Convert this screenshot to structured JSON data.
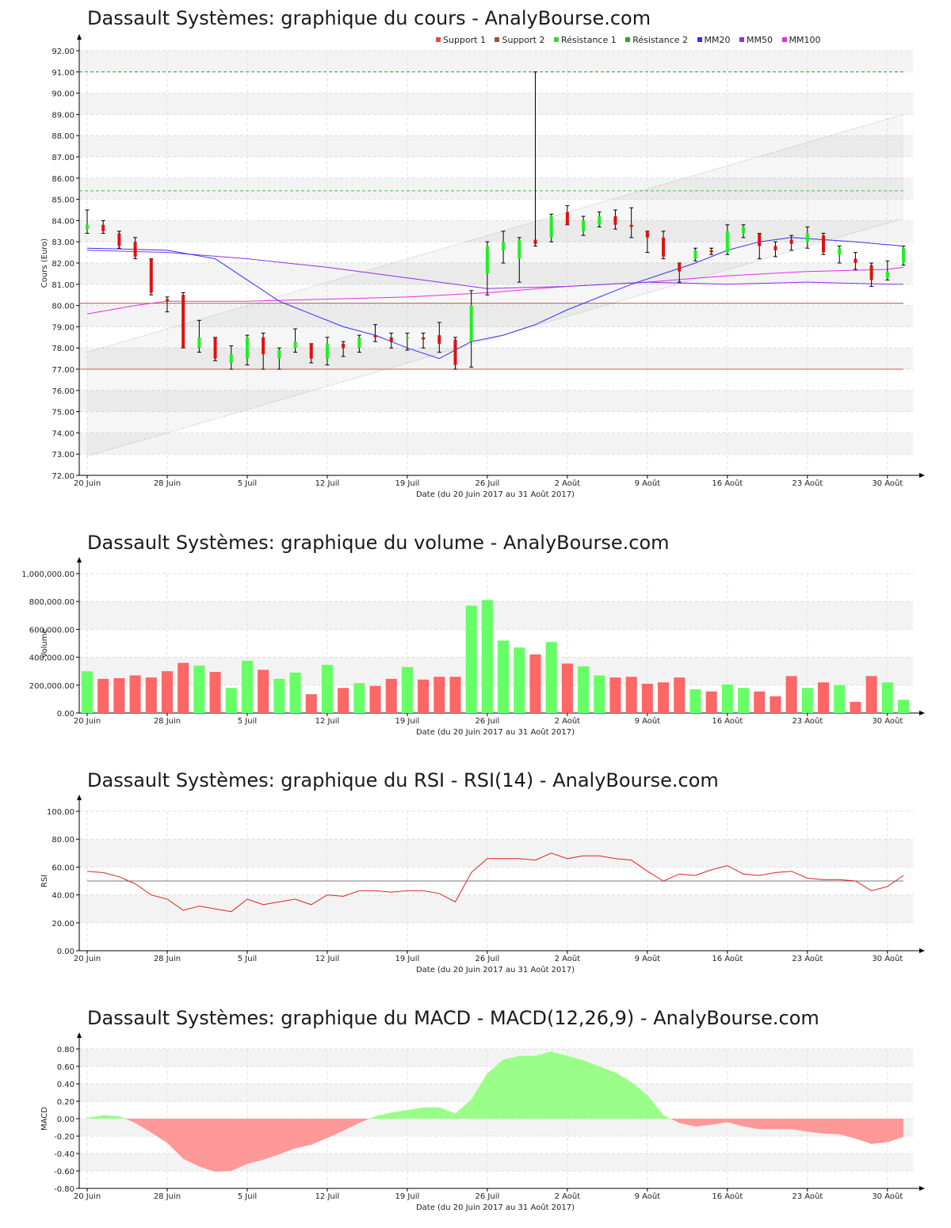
{
  "price": {
    "title": "Dassault Systèmes: graphique du cours - AnalyBourse.com",
    "ylabel": "Cours (Euro)",
    "xlabel": "Date (du 20 Juin 2017 au 31 Août 2017)",
    "legend": [
      {
        "name": "Support 1",
        "color": "#e05050"
      },
      {
        "name": "Support 2",
        "color": "#a05040"
      },
      {
        "name": "Résistance 1",
        "color": "#40d040"
      },
      {
        "name": "Résistance 2",
        "color": "#30a030"
      },
      {
        "name": "MM20",
        "color": "#3030ff"
      },
      {
        "name": "MM50",
        "color": "#9030e0"
      },
      {
        "name": "MM100",
        "color": "#e030e0"
      }
    ]
  },
  "volume": {
    "title": "Dassault Systèmes: graphique du volume - AnalyBourse.com",
    "ylabel": "Volume",
    "xlabel": "Date (du 20 Juin 2017 au 31 Août 2017)"
  },
  "rsi": {
    "title": "Dassault Systèmes: graphique du RSI - RSI(14) - AnalyBourse.com",
    "ylabel": "RSI",
    "xlabel": "Date (du 20 Juin 2017 au 31 Août 2017)"
  },
  "macd": {
    "title": "Dassault Systèmes: graphique du MACD - MACD(12,26,9) - AnalyBourse.com",
    "ylabel": "MACD",
    "xlabel": "Date (du 20 Juin 2017 au 31 Août 2017)"
  },
  "chart_data": [
    {
      "type": "candlestick",
      "title": "Dassault Systèmes: graphique du cours - AnalyBourse.com",
      "xlabel": "Date (du 20 Juin 2017 au 31 Août 2017)",
      "ylabel": "Cours (Euro)",
      "ylim": [
        72,
        92
      ],
      "yticks": [
        72,
        73,
        74,
        75,
        76,
        77,
        78,
        79,
        80,
        81,
        82,
        83,
        84,
        85,
        86,
        87,
        88,
        89,
        90,
        91,
        92
      ],
      "xticks": [
        {
          "label": "20 Juin",
          "index": 0
        },
        {
          "label": "28 Juin",
          "index": 5
        },
        {
          "label": "5 Juil",
          "index": 10
        },
        {
          "label": "12 Juil",
          "index": 15
        },
        {
          "label": "19 Juil",
          "index": 20
        },
        {
          "label": "26 Juil",
          "index": 25
        },
        {
          "label": "2 Août",
          "index": 30
        },
        {
          "label": "9 Août",
          "index": 35
        },
        {
          "label": "16 Août",
          "index": 40
        },
        {
          "label": "23 Août",
          "index": 45
        },
        {
          "label": "30 Août",
          "index": 50
        }
      ],
      "candles": [
        {
          "o": 83.6,
          "h": 84.5,
          "l": 83.4,
          "c": 83.8
        },
        {
          "o": 83.8,
          "h": 84.0,
          "l": 83.4,
          "c": 83.5
        },
        {
          "o": 83.4,
          "h": 83.5,
          "l": 82.7,
          "c": 82.8
        },
        {
          "o": 83.0,
          "h": 83.2,
          "l": 82.2,
          "c": 82.3
        },
        {
          "o": 82.2,
          "h": 82.2,
          "l": 80.5,
          "c": 80.6
        },
        {
          "o": 80.3,
          "h": 80.4,
          "l": 79.7,
          "c": 80.2
        },
        {
          "o": 80.5,
          "h": 80.6,
          "l": 78.0,
          "c": 78.0
        },
        {
          "o": 78.0,
          "h": 79.3,
          "l": 77.8,
          "c": 78.5
        },
        {
          "o": 78.5,
          "h": 78.5,
          "l": 77.4,
          "c": 77.5
        },
        {
          "o": 77.3,
          "h": 78.1,
          "l": 77.0,
          "c": 77.7
        },
        {
          "o": 77.5,
          "h": 78.6,
          "l": 77.2,
          "c": 78.5
        },
        {
          "o": 78.5,
          "h": 78.7,
          "l": 77.0,
          "c": 77.7
        },
        {
          "o": 77.5,
          "h": 78.0,
          "l": 77.0,
          "c": 77.9
        },
        {
          "o": 78.0,
          "h": 78.9,
          "l": 77.8,
          "c": 78.3
        },
        {
          "o": 78.2,
          "h": 78.2,
          "l": 77.3,
          "c": 77.5
        },
        {
          "o": 77.5,
          "h": 78.5,
          "l": 77.2,
          "c": 78.2
        },
        {
          "o": 78.2,
          "h": 78.3,
          "l": 77.6,
          "c": 78.0
        },
        {
          "o": 78.0,
          "h": 78.6,
          "l": 77.8,
          "c": 78.5
        },
        {
          "o": 78.6,
          "h": 79.1,
          "l": 78.3,
          "c": 78.5
        },
        {
          "o": 78.5,
          "h": 78.7,
          "l": 78.0,
          "c": 78.3
        },
        {
          "o": 78.5,
          "h": 78.7,
          "l": 77.9,
          "c": 78.5
        },
        {
          "o": 78.5,
          "h": 78.7,
          "l": 78.0,
          "c": 78.4
        },
        {
          "o": 78.6,
          "h": 79.2,
          "l": 77.8,
          "c": 78.2
        },
        {
          "o": 78.4,
          "h": 78.5,
          "l": 77.0,
          "c": 77.2
        },
        {
          "o": 78.3,
          "h": 80.7,
          "l": 77.1,
          "c": 80.0
        },
        {
          "o": 81.5,
          "h": 83.0,
          "l": 80.5,
          "c": 82.8
        },
        {
          "o": 82.6,
          "h": 83.5,
          "l": 82.0,
          "c": 83.0
        },
        {
          "o": 82.2,
          "h": 83.2,
          "l": 81.1,
          "c": 83.1
        },
        {
          "o": 83.1,
          "h": 91.0,
          "l": 82.8,
          "c": 82.9
        },
        {
          "o": 83.2,
          "h": 84.3,
          "l": 83.0,
          "c": 84.2
        },
        {
          "o": 84.4,
          "h": 84.7,
          "l": 83.8,
          "c": 83.8
        },
        {
          "o": 83.5,
          "h": 84.2,
          "l": 83.3,
          "c": 84.0
        },
        {
          "o": 83.8,
          "h": 84.4,
          "l": 83.7,
          "c": 84.2
        },
        {
          "o": 84.2,
          "h": 84.5,
          "l": 83.6,
          "c": 83.8
        },
        {
          "o": 83.8,
          "h": 84.6,
          "l": 83.2,
          "c": 83.7
        },
        {
          "o": 83.5,
          "h": 83.5,
          "l": 82.5,
          "c": 83.2
        },
        {
          "o": 83.2,
          "h": 83.5,
          "l": 82.2,
          "c": 82.3
        },
        {
          "o": 82.0,
          "h": 82.0,
          "l": 81.1,
          "c": 81.6
        },
        {
          "o": 82.2,
          "h": 82.7,
          "l": 82.1,
          "c": 82.6
        },
        {
          "o": 82.6,
          "h": 82.7,
          "l": 82.4,
          "c": 82.5
        },
        {
          "o": 82.5,
          "h": 83.8,
          "l": 82.4,
          "c": 83.5
        },
        {
          "o": 83.4,
          "h": 83.8,
          "l": 83.2,
          "c": 83.7
        },
        {
          "o": 83.4,
          "h": 83.4,
          "l": 82.2,
          "c": 82.8
        },
        {
          "o": 82.8,
          "h": 83.0,
          "l": 82.3,
          "c": 82.6
        },
        {
          "o": 83.1,
          "h": 83.3,
          "l": 82.6,
          "c": 82.9
        },
        {
          "o": 83.0,
          "h": 83.7,
          "l": 82.7,
          "c": 83.4
        },
        {
          "o": 83.3,
          "h": 83.4,
          "l": 82.4,
          "c": 82.5
        },
        {
          "o": 82.4,
          "h": 82.8,
          "l": 82.0,
          "c": 82.7
        },
        {
          "o": 82.2,
          "h": 82.5,
          "l": 81.7,
          "c": 82.0
        },
        {
          "o": 81.9,
          "h": 82.0,
          "l": 80.9,
          "c": 81.2
        },
        {
          "o": 81.3,
          "h": 82.1,
          "l": 81.2,
          "c": 81.6
        },
        {
          "o": 82.0,
          "h": 82.8,
          "l": 81.9,
          "c": 82.7
        }
      ],
      "support1": 77.0,
      "support2": 80.1,
      "resistance1": 85.4,
      "resistance2": 91.0,
      "mm20": [
        [
          0,
          82.7
        ],
        [
          5,
          82.6
        ],
        [
          8,
          82.2
        ],
        [
          10,
          81.2
        ],
        [
          12,
          80.2
        ],
        [
          14,
          79.6
        ],
        [
          16,
          79.0
        ],
        [
          18,
          78.6
        ],
        [
          20,
          78.0
        ],
        [
          22,
          77.5
        ],
        [
          24,
          78.3
        ],
        [
          26,
          78.6
        ],
        [
          28,
          79.1
        ],
        [
          30,
          79.8
        ],
        [
          32,
          80.4
        ],
        [
          34,
          81.0
        ],
        [
          36,
          81.5
        ],
        [
          38,
          82.0
        ],
        [
          40,
          82.6
        ],
        [
          42,
          83.0
        ],
        [
          44,
          83.2
        ],
        [
          46,
          83.1
        ],
        [
          48,
          83.0
        ],
        [
          51,
          82.8
        ]
      ],
      "mm50": [
        [
          0,
          82.6
        ],
        [
          5,
          82.5
        ],
        [
          10,
          82.2
        ],
        [
          15,
          81.8
        ],
        [
          20,
          81.3
        ],
        [
          25,
          80.8
        ],
        [
          30,
          80.9
        ],
        [
          35,
          81.1
        ],
        [
          40,
          81.0
        ],
        [
          45,
          81.1
        ],
        [
          50,
          81.0
        ],
        [
          51,
          81.0
        ]
      ],
      "mm100": [
        [
          0,
          79.6
        ],
        [
          3,
          80.0
        ],
        [
          5,
          80.2
        ],
        [
          10,
          80.2
        ],
        [
          15,
          80.3
        ],
        [
          20,
          80.4
        ],
        [
          25,
          80.6
        ],
        [
          30,
          80.9
        ],
        [
          35,
          81.1
        ],
        [
          40,
          81.4
        ],
        [
          45,
          81.6
        ],
        [
          50,
          81.7
        ],
        [
          51,
          81.8
        ]
      ],
      "channel_top": [
        [
          0,
          77.8
        ],
        [
          51,
          89.0
        ]
      ],
      "channel_bottom": [
        [
          0,
          72.9
        ],
        [
          51,
          84.1
        ]
      ]
    },
    {
      "type": "bar",
      "title": "Dassault Systèmes: graphique du volume - AnalyBourse.com",
      "xlabel": "Date (du 20 Juin 2017 au 31 Août 2017)",
      "ylabel": "Volume",
      "ylim": [
        0,
        1000000
      ],
      "yticks": [
        "0.00",
        "200,000.00",
        "400,000.00",
        "600,000.00",
        "800,000.00",
        "1,000,000.00"
      ],
      "values": [
        300000,
        245000,
        250000,
        270000,
        255000,
        300000,
        360000,
        340000,
        295000,
        180000,
        375000,
        310000,
        245000,
        290000,
        135000,
        345000,
        180000,
        215000,
        195000,
        245000,
        330000,
        240000,
        260000,
        260000,
        770000,
        810000,
        520000,
        470000,
        420000,
        510000,
        355000,
        335000,
        270000,
        255000,
        260000,
        210000,
        220000,
        255000,
        170000,
        155000,
        205000,
        180000,
        155000,
        120000,
        265000,
        180000,
        220000,
        200000,
        80000,
        265000,
        220000,
        95000
      ]
    },
    {
      "type": "line",
      "title": "Dassault Systèmes: graphique du RSI - RSI(14) - AnalyBourse.com",
      "xlabel": "Date (du 20 Juin 2017 au 31 Août 2017)",
      "ylabel": "RSI",
      "ylim": [
        0,
        100
      ],
      "yticks": [
        "0.00",
        "20.00",
        "40.00",
        "60.00",
        "80.00",
        "100.00"
      ],
      "reference": 50,
      "values": [
        57,
        56,
        53,
        48,
        40,
        37,
        29,
        32,
        30,
        28,
        37,
        33,
        35,
        37,
        33,
        40,
        39,
        43,
        43,
        42,
        43,
        43,
        41,
        35,
        56,
        66,
        66,
        66,
        65,
        70,
        66,
        68,
        68,
        66,
        65,
        57,
        50,
        55,
        54,
        58,
        61,
        55,
        54,
        56,
        57,
        52,
        51,
        51,
        50,
        43,
        46,
        54
      ]
    },
    {
      "type": "area",
      "title": "Dassault Systèmes: graphique du MACD - MACD(12,26,9) - AnalyBourse.com",
      "xlabel": "Date (du 20 Juin 2017 au 31 Août 2017)",
      "ylabel": "MACD",
      "ylim": [
        -0.8,
        0.8
      ],
      "yticks": [
        "-0.80",
        "-0.60",
        "-0.40",
        "-0.20",
        "0.00",
        "0.20",
        "0.40",
        "0.60",
        "0.80"
      ],
      "values": [
        0.01,
        0.04,
        0.03,
        -0.05,
        -0.16,
        -0.28,
        -0.46,
        -0.55,
        -0.61,
        -0.6,
        -0.52,
        -0.47,
        -0.41,
        -0.34,
        -0.3,
        -0.22,
        -0.14,
        -0.05,
        0.03,
        0.07,
        0.1,
        0.13,
        0.13,
        0.06,
        0.22,
        0.52,
        0.68,
        0.72,
        0.72,
        0.77,
        0.72,
        0.67,
        0.6,
        0.53,
        0.42,
        0.27,
        0.04,
        -0.05,
        -0.09,
        -0.07,
        -0.04,
        -0.09,
        -0.12,
        -0.12,
        -0.12,
        -0.15,
        -0.17,
        -0.18,
        -0.23,
        -0.29,
        -0.27,
        -0.21
      ]
    }
  ]
}
